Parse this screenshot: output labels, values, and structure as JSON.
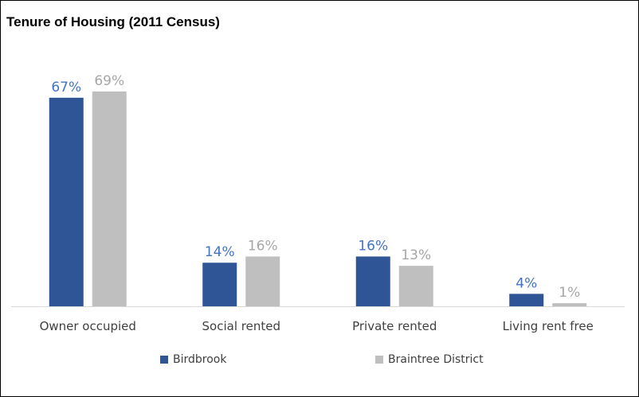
{
  "chart_data": {
    "type": "bar",
    "title": "Tenure of Housing (2011 Census)",
    "categories": [
      "Owner occupied",
      "Social rented",
      "Private rented",
      "Living rent free"
    ],
    "series": [
      {
        "name": "Birdbrook",
        "values": [
          67,
          14,
          16,
          4
        ],
        "labels": [
          "67%",
          "14%",
          "16%",
          "4%"
        ],
        "color": "#2f5597",
        "label_color": "#4472c4"
      },
      {
        "name": "Braintree District",
        "values": [
          69,
          16,
          13,
          1
        ],
        "labels": [
          "69%",
          "16%",
          "13%",
          "1%"
        ],
        "color": "#bfbfbf",
        "label_color": "#a6a6a6"
      }
    ],
    "ylim": [
      0,
      75
    ],
    "grid": false,
    "legend_position": "bottom"
  }
}
